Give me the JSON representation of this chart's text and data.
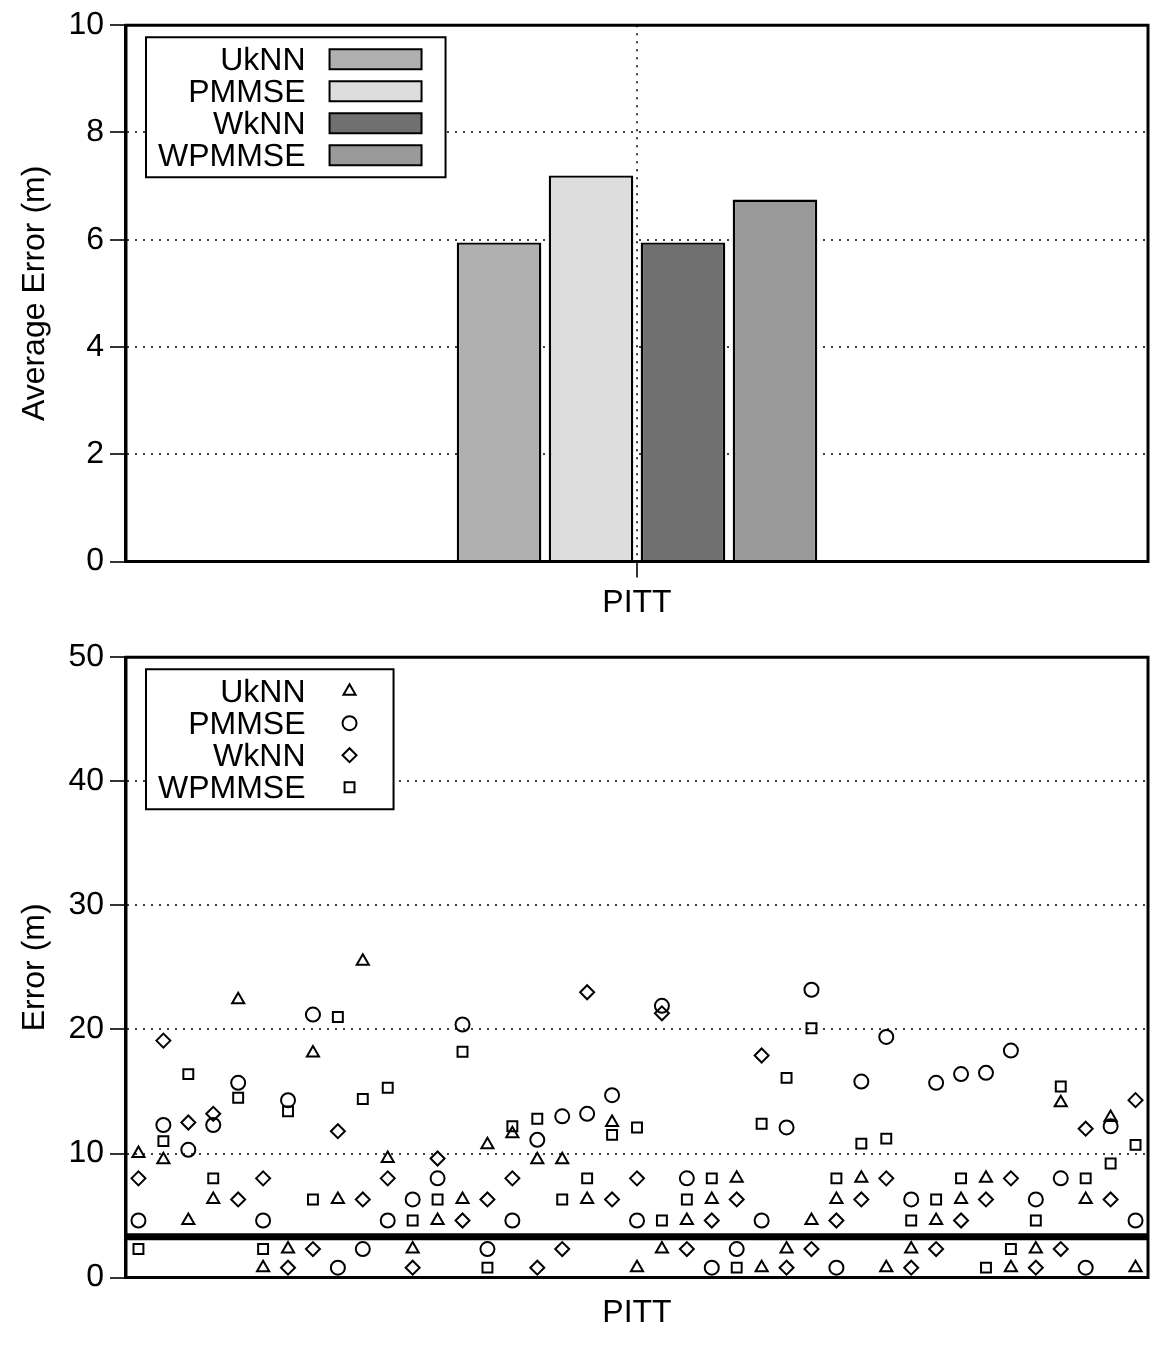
{
  "chart_data": [
    {
      "type": "bar",
      "categories": [
        "PITT"
      ],
      "ylabel": "Average Error (m)",
      "ylim": [
        0,
        10
      ],
      "yticks": [
        0,
        2,
        4,
        6,
        8,
        10
      ],
      "grid": true,
      "legend": "top left",
      "series": [
        {
          "name": "UkNN",
          "color": "#b0b0b0",
          "values": [
            5.95
          ]
        },
        {
          "name": "PMMSE",
          "color": "#dddddd",
          "values": [
            7.2
          ]
        },
        {
          "name": "WkNN",
          "color": "#707070",
          "values": [
            5.95
          ]
        },
        {
          "name": "WPMMSE",
          "color": "#999999",
          "values": [
            6.75
          ]
        }
      ]
    },
    {
      "type": "scatter",
      "xlabel": "PITT",
      "ylabel": "Error (m)",
      "ylim": [
        0,
        50
      ],
      "yticks": [
        0,
        10,
        20,
        30,
        40,
        50
      ],
      "grid": "y",
      "legend": "top left",
      "tick_labels": "y",
      "categories": [
        null,
        null,
        null,
        null,
        null,
        null,
        null,
        null,
        null,
        null,
        null,
        null,
        null,
        null,
        null,
        null,
        null,
        null,
        null,
        null,
        null,
        null,
        null,
        null,
        null,
        null,
        null,
        null,
        null,
        null,
        null,
        null,
        null,
        null,
        null,
        null,
        null,
        null,
        null,
        null,
        null
      ],
      "ref_lines": [
        {
          "axis": "y",
          "value": 3.3,
          "color": "#000000"
        }
      ],
      "series": [
        {
          "name": "UkNN",
          "color": "#000000",
          "marker": "triangle",
          "values": [
            10,
            9.5,
            4.6,
            6.3,
            22.4,
            0.8,
            2.3,
            18.1,
            6.3,
            25.5,
            9.6,
            2.3,
            4.6,
            6.3,
            10.7,
            11.6,
            9.5,
            9.5,
            6.3,
            12.5,
            0.8,
            2.3,
            4.6,
            6.3,
            8.0,
            0.8,
            2.3,
            4.6,
            6.3,
            8.0,
            0.8,
            2.3,
            4.6,
            6.3,
            8.0,
            0.8,
            2.3,
            14.1,
            6.3,
            12.9,
            0.8
          ]
        },
        {
          "name": "PMMSE",
          "color": "#000000",
          "marker": "circle",
          "values": [
            4.6,
            12.3,
            10.3,
            12.3,
            15.7,
            4.6,
            14.3,
            21.2,
            0.8,
            2.3,
            4.6,
            6.3,
            8.0,
            20.4,
            2.3,
            4.6,
            11.1,
            13,
            13.2,
            14.7,
            4.6,
            21.9,
            8.0,
            0.8,
            2.3,
            4.6,
            12.1,
            23.2,
            0.8,
            15.8,
            19.4,
            6.3,
            15.7,
            16.4,
            16.5,
            18.3,
            6.3,
            8.0,
            0.8,
            12.2,
            4.6
          ]
        },
        {
          "name": "WkNN",
          "color": "#000000",
          "marker": "diamond",
          "values": [
            8.0,
            19.1,
            12.5,
            13.2,
            6.3,
            8.0,
            0.8,
            2.3,
            11.8,
            6.3,
            8.0,
            0.8,
            9.6,
            4.6,
            6.3,
            8.0,
            0.8,
            2.3,
            23,
            6.3,
            8.0,
            21.3,
            2.3,
            4.6,
            6.3,
            17.9,
            0.8,
            2.3,
            4.6,
            6.3,
            8.0,
            0.8,
            2.3,
            4.6,
            6.3,
            8.0,
            0.8,
            2.3,
            12,
            6.3,
            14.3
          ]
        },
        {
          "name": "WPMMSE",
          "color": "#000000",
          "marker": "square",
          "values": [
            2.3,
            11,
            16.4,
            8.0,
            14.5,
            2.3,
            13.4,
            6.3,
            21,
            14.4,
            15.3,
            4.6,
            6.3,
            18.2,
            0.8,
            12.2,
            12.8,
            6.3,
            8.0,
            11.5,
            12.1,
            4.6,
            6.3,
            8.0,
            0.8,
            12.4,
            16.1,
            20.1,
            8.0,
            10.8,
            11.2,
            4.6,
            6.3,
            8.0,
            0.8,
            2.3,
            4.6,
            15.4,
            8.0,
            9.2,
            10.7
          ]
        }
      ]
    }
  ]
}
